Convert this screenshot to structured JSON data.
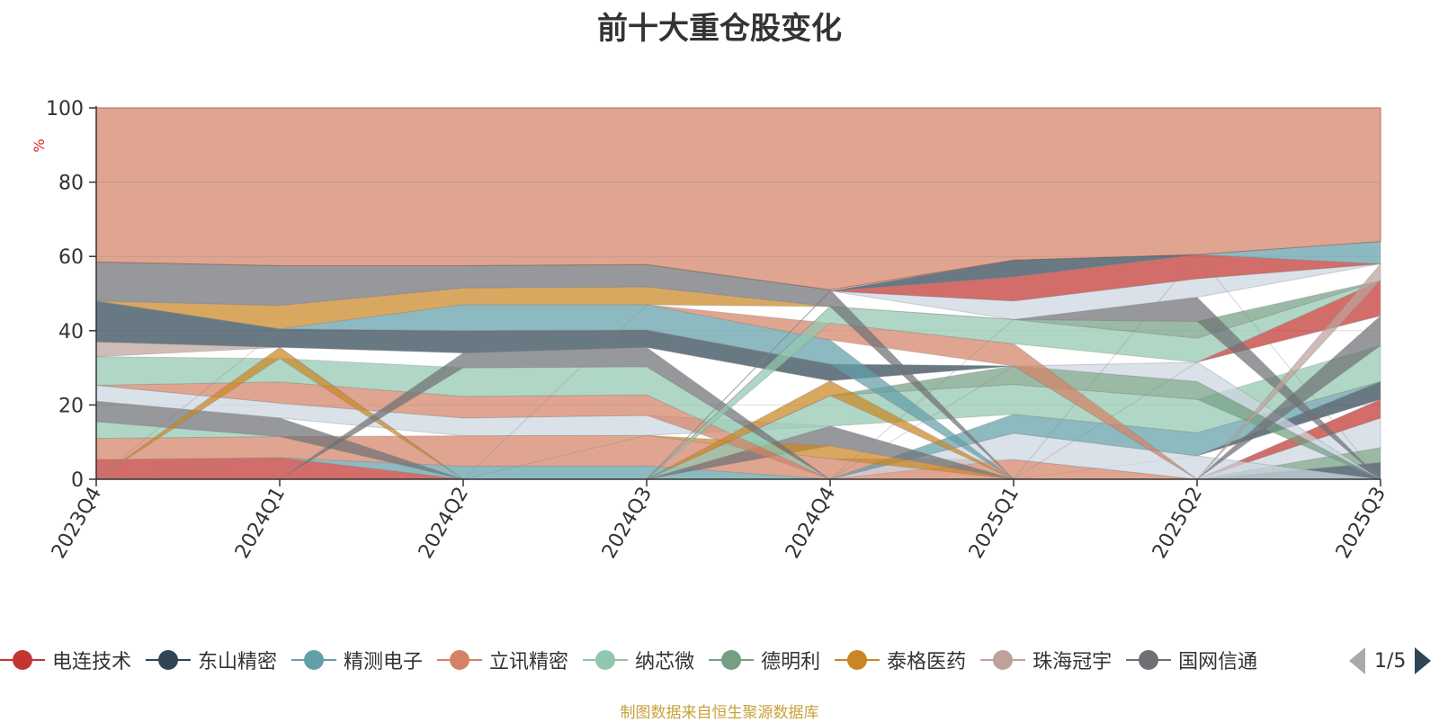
{
  "chart_data": {
    "type": "area",
    "title": "前十大重仓股变化",
    "ylabel": "%",
    "ylim": [
      0,
      100
    ],
    "yticks": [
      0,
      20,
      40,
      60,
      80,
      100
    ],
    "categories": [
      "2023Q4",
      "2024Q1",
      "2024Q2",
      "2024Q3",
      "2024Q4",
      "2025Q1",
      "2025Q2",
      "2025Q3"
    ],
    "bands": [
      {
        "color": "#c23531",
        "values": [
          [
            0,
            5.3
          ],
          [
            0,
            5.8
          ],
          [
            0,
            0
          ],
          [
            0,
            0
          ],
          [
            0,
            0
          ],
          [
            0,
            0
          ],
          [
            0,
            0
          ],
          [
            0,
            0
          ]
        ]
      },
      {
        "color": "#2f4554",
        "values": [
          [
            0,
            0
          ],
          [
            0,
            0
          ],
          [
            0,
            0
          ],
          [
            0,
            0
          ],
          [
            0,
            0
          ],
          [
            0,
            0
          ],
          [
            0,
            0
          ],
          [
            0,
            4.5
          ]
        ]
      },
      {
        "color": "#749f83",
        "values": [
          [
            0,
            0
          ],
          [
            0,
            0
          ],
          [
            0,
            0
          ],
          [
            0,
            0
          ],
          [
            0,
            0
          ],
          [
            0,
            0
          ],
          [
            0,
            0
          ],
          [
            4.5,
            8.5
          ]
        ]
      },
      {
        "color": "#ccd5e0",
        "values": [
          [
            0,
            0
          ],
          [
            0,
            0
          ],
          [
            0,
            0
          ],
          [
            0,
            0
          ],
          [
            0,
            0
          ],
          [
            0,
            0
          ],
          [
            0,
            0
          ],
          [
            8.5,
            16.5
          ]
        ]
      },
      {
        "color": "#c23531",
        "values": [
          [
            0,
            0
          ],
          [
            0,
            0
          ],
          [
            0,
            0
          ],
          [
            0,
            0
          ],
          [
            0,
            0
          ],
          [
            0,
            0
          ],
          [
            0,
            0
          ],
          [
            16.5,
            21.5
          ]
        ]
      },
      {
        "color": "#2f4554",
        "values": [
          [
            0,
            0
          ],
          [
            0,
            0
          ],
          [
            0,
            0
          ],
          [
            0,
            0
          ],
          [
            0,
            0
          ],
          [
            0,
            0
          ],
          [
            6.3,
            6.3
          ],
          [
            21.5,
            26.3
          ]
        ]
      },
      {
        "color": "#61a0a8",
        "values": [
          [
            0,
            0
          ],
          [
            5.8,
            5.8
          ],
          [
            0,
            3.5
          ],
          [
            0,
            3.6
          ],
          [
            0,
            0
          ],
          [
            0,
            0
          ],
          [
            0,
            0
          ],
          [
            0,
            0
          ]
        ]
      },
      {
        "color": "#d48265",
        "values": [
          [
            5.3,
            11
          ],
          [
            5.8,
            11.5
          ],
          [
            3.5,
            11.7
          ],
          [
            3.6,
            11.8
          ],
          [
            0,
            5.5
          ],
          [
            0,
            5.3
          ],
          [
            0,
            0
          ],
          [
            0,
            0
          ]
        ]
      },
      {
        "color": "#ccd5e0",
        "values": [
          [
            0,
            0
          ],
          [
            0,
            0
          ],
          [
            0,
            0
          ],
          [
            0,
            0
          ],
          [
            0,
            0
          ],
          [
            5.3,
            12.4
          ],
          [
            0,
            6.3
          ],
          [
            0,
            0
          ]
        ]
      },
      {
        "color": "#61a0a8",
        "values": [
          [
            0,
            0
          ],
          [
            0,
            0
          ],
          [
            0,
            0
          ],
          [
            0,
            0
          ],
          [
            0,
            0
          ],
          [
            12.4,
            17.5
          ],
          [
            6.3,
            12.5
          ],
          [
            26.3,
            26.3
          ]
        ]
      },
      {
        "color": "#91c7ae",
        "values": [
          [
            11,
            15.5
          ],
          [
            11.5,
            11.5
          ],
          [
            0,
            0
          ],
          [
            0,
            0
          ],
          [
            0,
            0
          ],
          [
            0,
            0
          ],
          [
            0,
            0
          ],
          [
            0,
            0
          ]
        ]
      },
      {
        "color": "#6e7074",
        "values": [
          [
            15.5,
            21
          ],
          [
            11.5,
            16.5
          ],
          [
            0,
            0
          ],
          [
            0,
            0
          ],
          [
            9,
            14.3
          ],
          [
            0,
            0
          ],
          [
            0,
            0
          ],
          [
            0,
            0
          ]
        ]
      },
      {
        "color": "#ca8622",
        "values": [
          [
            0,
            0
          ],
          [
            0,
            0
          ],
          [
            0,
            0
          ],
          [
            11.8,
            11.8
          ],
          [
            5.5,
            9
          ],
          [
            0,
            0
          ],
          [
            0,
            0
          ],
          [
            0,
            0
          ]
        ]
      },
      {
        "color": "#ccd5e0",
        "values": [
          [
            21,
            25.3
          ],
          [
            16.5,
            20.5
          ],
          [
            11.7,
            16.5
          ],
          [
            11.8,
            17.2
          ],
          [
            14.3,
            14.3
          ],
          [
            0,
            0
          ],
          [
            0,
            0
          ],
          [
            0,
            0
          ]
        ]
      },
      {
        "color": "#91c7ae",
        "values": [
          [
            0,
            0
          ],
          [
            0,
            0
          ],
          [
            0,
            0
          ],
          [
            0,
            0
          ],
          [
            14.3,
            22.5
          ],
          [
            17.5,
            25.5
          ],
          [
            12.5,
            21.5
          ],
          [
            26.3,
            36
          ]
        ]
      },
      {
        "color": "#d48265",
        "values": [
          [
            25.3,
            25.3
          ],
          [
            20.5,
            26.2
          ],
          [
            16.5,
            22.3
          ],
          [
            17.2,
            22.7
          ],
          [
            0,
            0
          ],
          [
            0,
            0
          ],
          [
            0,
            0
          ],
          [
            0,
            0
          ]
        ]
      },
      {
        "color": "#91c7ae",
        "values": [
          [
            25.3,
            33
          ],
          [
            26.2,
            32.5
          ],
          [
            22.3,
            30
          ],
          [
            22.7,
            30.3
          ],
          [
            0,
            0
          ],
          [
            0,
            0
          ],
          [
            0,
            0
          ],
          [
            0,
            0
          ]
        ]
      },
      {
        "color": "#749f83",
        "values": [
          [
            0,
            0
          ],
          [
            0,
            0
          ],
          [
            0,
            0
          ],
          [
            0,
            0
          ],
          [
            22.5,
            22.5
          ],
          [
            25.5,
            30.5
          ],
          [
            21.5,
            26.3
          ],
          [
            0,
            0
          ]
        ]
      },
      {
        "color": "#ca8622",
        "values": [
          [
            0,
            0
          ],
          [
            32.5,
            35.5
          ],
          [
            0,
            0
          ],
          [
            0,
            0
          ],
          [
            22.5,
            26.5
          ],
          [
            0,
            0
          ],
          [
            0,
            0
          ],
          [
            0,
            0
          ]
        ]
      },
      {
        "color": "#ccd5e0",
        "values": [
          [
            0,
            0
          ],
          [
            0,
            0
          ],
          [
            0,
            0
          ],
          [
            0,
            0
          ],
          [
            0,
            0
          ],
          [
            30.5,
            30.5
          ],
          [
            26.3,
            31.5
          ],
          [
            0,
            0
          ]
        ]
      },
      {
        "color": "#6e7074",
        "values": [
          [
            0,
            0
          ],
          [
            0,
            0
          ],
          [
            30,
            34
          ],
          [
            30.3,
            35.5
          ],
          [
            0,
            0
          ],
          [
            0,
            0
          ],
          [
            0,
            0
          ],
          [
            36,
            44
          ]
        ]
      },
      {
        "color": "#bda29a",
        "values": [
          [
            33,
            37
          ],
          [
            35.5,
            35.5
          ],
          [
            0,
            0
          ],
          [
            0,
            0
          ],
          [
            0,
            0
          ],
          [
            0,
            0
          ],
          [
            0,
            0
          ],
          [
            0,
            0
          ]
        ]
      },
      {
        "color": "#2f4554",
        "values": [
          [
            37,
            48
          ],
          [
            35.5,
            40.5
          ],
          [
            34,
            40
          ],
          [
            35.5,
            40.2
          ],
          [
            26.5,
            31
          ],
          [
            30.5,
            30.5
          ],
          [
            0,
            0
          ],
          [
            0,
            0
          ]
        ]
      },
      {
        "color": "#c23531",
        "values": [
          [
            0,
            0
          ],
          [
            0,
            0
          ],
          [
            0,
            0
          ],
          [
            0,
            0
          ],
          [
            0,
            0
          ],
          [
            0,
            0
          ],
          [
            31.5,
            31.5
          ],
          [
            44,
            53.5
          ]
        ]
      },
      {
        "color": "#61a0a8",
        "values": [
          [
            0,
            0
          ],
          [
            40.5,
            40.5
          ],
          [
            40,
            47
          ],
          [
            40.2,
            47
          ],
          [
            31,
            37.5
          ],
          [
            0,
            0
          ],
          [
            0,
            0
          ],
          [
            0,
            0
          ]
        ]
      },
      {
        "color": "#d48265",
        "values": [
          [
            0,
            0
          ],
          [
            0,
            0
          ],
          [
            0,
            0
          ],
          [
            47,
            47
          ],
          [
            37.5,
            42
          ],
          [
            30.5,
            36.5
          ],
          [
            0,
            0
          ],
          [
            0,
            0
          ]
        ]
      },
      {
        "color": "#91c7ae",
        "values": [
          [
            0,
            0
          ],
          [
            0,
            0
          ],
          [
            0,
            0
          ],
          [
            0,
            0
          ],
          [
            42,
            46.5
          ],
          [
            36.5,
            43
          ],
          [
            31.5,
            38
          ],
          [
            53.5,
            53.5
          ]
        ]
      },
      {
        "color": "#749f83",
        "values": [
          [
            0,
            0
          ],
          [
            0,
            0
          ],
          [
            0,
            0
          ],
          [
            0,
            0
          ],
          [
            46.5,
            46.5
          ],
          [
            43,
            43
          ],
          [
            38,
            42.5
          ],
          [
            53.5,
            53.5
          ]
        ]
      },
      {
        "color": "#6e7074",
        "values": [
          [
            0,
            0
          ],
          [
            0,
            0
          ],
          [
            0,
            0
          ],
          [
            0,
            0
          ],
          [
            0,
            0
          ],
          [
            43,
            43
          ],
          [
            42.5,
            49
          ],
          [
            0,
            0
          ]
        ]
      },
      {
        "color": "#bda29a",
        "values": [
          [
            0,
            0
          ],
          [
            0,
            0
          ],
          [
            0,
            0
          ],
          [
            0,
            0
          ],
          [
            0,
            0
          ],
          [
            0,
            0
          ],
          [
            0,
            0
          ],
          [
            53.5,
            58
          ]
        ]
      },
      {
        "color": "#ca8622",
        "values": [
          [
            48,
            48
          ],
          [
            40.5,
            46.8
          ],
          [
            47,
            51.5
          ],
          [
            47,
            51.8
          ],
          [
            46.5,
            46.5
          ],
          [
            0,
            0
          ],
          [
            0,
            0
          ],
          [
            0,
            0
          ]
        ]
      },
      {
        "color": "#ccd5e0",
        "values": [
          [
            0,
            0
          ],
          [
            0,
            0
          ],
          [
            0,
            0
          ],
          [
            0,
            0
          ],
          [
            50.7,
            50.7
          ],
          [
            43,
            48
          ],
          [
            49,
            54
          ],
          [
            58,
            58
          ]
        ]
      },
      {
        "color": "#c23531",
        "values": [
          [
            0,
            0
          ],
          [
            0,
            0
          ],
          [
            0,
            0
          ],
          [
            0,
            0
          ],
          [
            50.7,
            50.7
          ],
          [
            48,
            54.5
          ],
          [
            54,
            60.5
          ],
          [
            58,
            58
          ]
        ]
      },
      {
        "color": "#2f4554",
        "values": [
          [
            0,
            0
          ],
          [
            0,
            0
          ],
          [
            0,
            0
          ],
          [
            0,
            0
          ],
          [
            50.7,
            50.7
          ],
          [
            54.5,
            59
          ],
          [
            60.5,
            60.5
          ],
          [
            0,
            0
          ]
        ]
      },
      {
        "color": "#6e7074",
        "values": [
          [
            48,
            58.5
          ],
          [
            46.8,
            57.5
          ],
          [
            51.5,
            57.5
          ],
          [
            51.8,
            57.8
          ],
          [
            46.5,
            51
          ],
          [
            0,
            0
          ],
          [
            0,
            0
          ],
          [
            0,
            0
          ]
        ]
      },
      {
        "color": "#61a0a8",
        "values": [
          [
            0,
            0
          ],
          [
            0,
            0
          ],
          [
            0,
            0
          ],
          [
            0,
            0
          ],
          [
            0,
            0
          ],
          [
            0,
            0
          ],
          [
            60.5,
            60.5
          ],
          [
            58,
            64
          ]
        ]
      }
    ],
    "legend": [
      {
        "name": "电连技术",
        "color": "#c23531"
      },
      {
        "name": "东山精密",
        "color": "#2f4554"
      },
      {
        "name": "精测电子",
        "color": "#61a0a8"
      },
      {
        "name": "立讯精密",
        "color": "#d48265"
      },
      {
        "name": "纳芯微",
        "color": "#91c7ae"
      },
      {
        "name": "德明利",
        "color": "#749f83"
      },
      {
        "name": "泰格医药",
        "color": "#ca8622"
      },
      {
        "name": "珠海冠宇",
        "color": "#bda29a"
      },
      {
        "name": "国网信通",
        "color": "#6e7074"
      }
    ],
    "top_band_color": "#d48265"
  },
  "legend_pager": "1/5",
  "footer": "制图数据来自恒生聚源数据库"
}
